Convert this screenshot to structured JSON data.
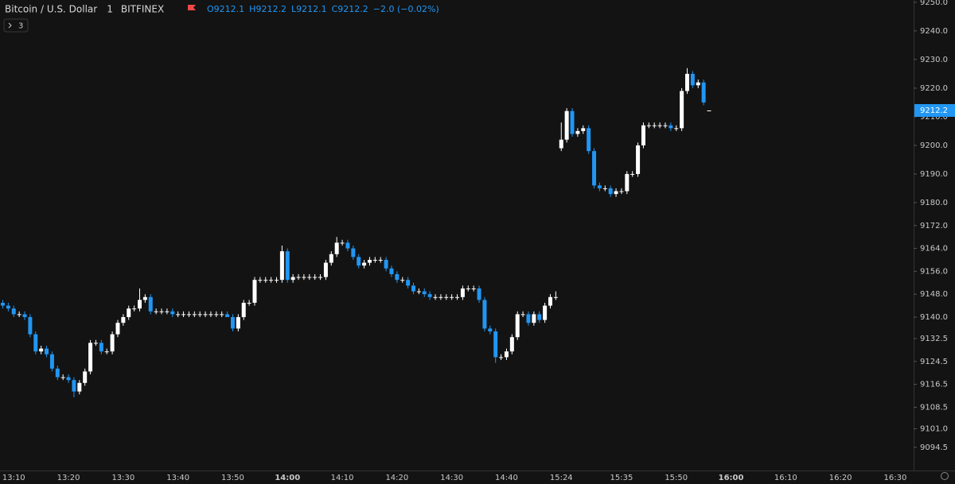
{
  "chart_data": {
    "type": "candlestick",
    "title": "Bitcoin / U.S. Dollar",
    "interval": "1",
    "exchange": "BITFINEX",
    "ohlc_labels": [
      "O",
      "H",
      "L",
      "C"
    ],
    "change": "−2.0 (−0.02%)",
    "indicators_count": 3,
    "up_color": "#ffffff",
    "down_color": "#2196f3",
    "categories": [
      null,
      null,
      "13:10",
      null,
      null,
      null,
      null,
      null,
      null,
      null,
      null,
      null,
      "13:20",
      null,
      null,
      null,
      null,
      null,
      null,
      null,
      null,
      null,
      "13:30",
      null,
      null,
      null,
      null,
      null,
      null,
      null,
      null,
      null,
      "13:40",
      null,
      null,
      null,
      null,
      null,
      null,
      null,
      null,
      null,
      "13:50",
      null,
      null,
      null,
      null,
      null,
      null,
      null,
      null,
      null,
      "14:00",
      null,
      null,
      null,
      null,
      null,
      null,
      null,
      null,
      null,
      "14:10",
      null,
      null,
      null,
      null,
      null,
      null,
      null,
      null,
      null,
      "14:20",
      null,
      null,
      null,
      null,
      null,
      null,
      null,
      null,
      null,
      "14:30",
      null,
      null,
      null,
      null,
      null,
      null,
      null,
      null,
      null,
      "14:40",
      null,
      null,
      null,
      null,
      null,
      null,
      null,
      null,
      null,
      "15:24",
      null,
      null,
      null,
      null,
      null,
      null,
      null,
      null,
      null,
      null,
      "15:35",
      null,
      null,
      null,
      null,
      null,
      null,
      null,
      null,
      null,
      "15:50",
      null,
      null,
      null,
      null,
      null,
      null,
      null,
      null,
      null,
      "16:00",
      null,
      null,
      null,
      null,
      null,
      null,
      null,
      null,
      null,
      "16:10",
      null,
      null,
      null,
      null,
      null,
      null,
      null,
      null,
      null,
      "16:20",
      null,
      null,
      null,
      null,
      null,
      null,
      null,
      null,
      null,
      "16:30"
    ],
    "open": [
      9145,
      9144,
      9143,
      9141,
      9141,
      9140,
      9134,
      9128,
      9129,
      9127,
      9122,
      9119,
      9119,
      9118,
      9114,
      9117,
      9121,
      9131,
      9131,
      9128,
      9128,
      9134,
      9138,
      9140,
      9143,
      9143,
      9146,
      9147,
      9142,
      9142,
      9142,
      9142,
      9141,
      9141,
      9141,
      9141,
      9141,
      9141,
      9141,
      9141,
      9141,
      9141,
      9140,
      9136,
      9140,
      9145,
      9145,
      9153,
      9153,
      9153,
      9153,
      9153,
      9163,
      9153,
      9154,
      9154,
      9154,
      9154,
      9154,
      9154,
      9159,
      9162,
      9166,
      9166,
      9164,
      9161,
      9158,
      9159,
      9160,
      9160,
      9160,
      9157,
      9155,
      9153,
      9153,
      9151,
      9149,
      9149,
      9148,
      9147,
      9147,
      9147,
      9147,
      9147,
      9147,
      9150,
      9150,
      9150,
      9146,
      9136,
      9135,
      9126,
      9126,
      9128,
      9133,
      9141,
      9141,
      9138,
      9141,
      9139,
      9144,
      9147,
      9199,
      9202,
      9212,
      9204,
      9205,
      9206,
      9198,
      9186,
      9185,
      9185,
      9183,
      9184,
      9184,
      9190,
      9190,
      9200,
      9207,
      9207,
      9207,
      9207,
      9207,
      9206,
      9206,
      9219,
      9225,
      9221,
      9222,
      9212.1,
      null,
      null,
      null,
      null,
      null,
      null,
      null,
      null,
      null,
      null,
      null,
      null,
      null,
      null,
      null,
      null,
      null,
      null,
      null,
      null,
      null,
      null,
      null,
      null,
      null,
      null,
      null,
      null,
      null,
      null,
      null,
      null,
      null,
      null
    ],
    "high": [
      9146,
      9145,
      9144,
      9142,
      9142,
      9141,
      9135,
      9130,
      9130,
      9128,
      9123,
      9120,
      9120,
      9119,
      9118,
      9122,
      9132,
      9132,
      9132,
      9129,
      9135,
      9139,
      9141,
      9144,
      9144,
      9150,
      9148,
      9148,
      9143,
      9143,
      9143,
      9143,
      9142,
      9142,
      9142,
      9142,
      9142,
      9142,
      9142,
      9142,
      9142,
      9142,
      9141,
      9141,
      9146,
      9146,
      9154,
      9154,
      9154,
      9154,
      9154,
      9165,
      9164,
      9155,
      9155,
      9155,
      9155,
      9155,
      9155,
      9160,
      9163,
      9168,
      9167,
      9167,
      9165,
      9162,
      9160,
      9161,
      9161,
      9161,
      9161,
      9158,
      9156,
      9154,
      9154,
      9152,
      9150,
      9150,
      9149,
      9148,
      9148,
      9148,
      9148,
      9148,
      9151,
      9151,
      9151,
      9151,
      9147,
      9137,
      9136,
      9127,
      9129,
      9134,
      9142,
      9142,
      9142,
      9142,
      9142,
      9145,
      9148,
      9149,
      9208,
      9213,
      9213,
      9206,
      9207,
      9207,
      9199,
      9187,
      9186,
      9186,
      9185,
      9185,
      9191,
      9191,
      9201,
      9208,
      9208,
      9208,
      9208,
      9208,
      9208,
      9207,
      9220,
      9227,
      9226,
      9223,
      9223,
      9212.2,
      null,
      null,
      null,
      null,
      null,
      null,
      null,
      null,
      null,
      null,
      null,
      null,
      null,
      null,
      null,
      null,
      null,
      null,
      null,
      null,
      null,
      null,
      null,
      null,
      null,
      null,
      null,
      null,
      null,
      null,
      null,
      null,
      null,
      null
    ],
    "low": [
      9143,
      9142,
      9140,
      9140,
      9139,
      9133,
      9127,
      9127,
      9126,
      9121,
      9118,
      9118,
      9117,
      9112,
      9113,
      9116,
      9120,
      9130,
      9127,
      9127,
      9127,
      9133,
      9137,
      9139,
      9142,
      9142,
      9145,
      9141,
      9141,
      9141,
      9141,
      9140,
      9140,
      9140,
      9140,
      9140,
      9140,
      9140,
      9140,
      9140,
      9140,
      9140,
      9135,
      9135,
      9139,
      9144,
      9144,
      9152,
      9152,
      9152,
      9152,
      9152,
      9152,
      9152,
      9153,
      9153,
      9153,
      9153,
      9153,
      9153,
      9158,
      9161,
      9165,
      9163,
      9160,
      9157,
      9157,
      9158,
      9159,
      9159,
      9156,
      9154,
      9152,
      9152,
      9150,
      9148,
      9148,
      9147,
      9146,
      9146,
      9146,
      9146,
      9146,
      9146,
      9146,
      9149,
      9149,
      9145,
      9135,
      9134,
      9124,
      9125,
      9125,
      9127,
      9132,
      9140,
      9137,
      9137,
      9138,
      9138,
      9143,
      9146,
      9198,
      9201,
      9203,
      9203,
      9204,
      9197,
      9185,
      9184,
      9184,
      9182,
      9182,
      9183,
      9183,
      9189,
      9189,
      9199,
      9206,
      9206,
      9206,
      9206,
      9205,
      9205,
      9205,
      9218,
      9220,
      9220,
      9214,
      9212.1,
      null,
      null,
      null,
      null,
      null,
      null,
      null,
      null,
      null,
      null,
      null,
      null,
      null,
      null,
      null,
      null,
      null,
      null,
      null,
      null,
      null,
      null,
      null,
      null,
      null,
      null,
      null,
      null,
      null,
      null,
      null,
      null,
      null,
      null
    ],
    "close": [
      9144,
      9143,
      9141,
      9141,
      9140,
      9134,
      9128,
      9129,
      9127,
      9122,
      9119,
      9119,
      9118,
      9114,
      9117,
      9121,
      9131,
      9131,
      9128,
      9128,
      9134,
      9138,
      9140,
      9143,
      9143,
      9146,
      9147,
      9142,
      9142,
      9142,
      9142,
      9141,
      9141,
      9141,
      9141,
      9141,
      9141,
      9141,
      9141,
      9141,
      9141,
      9140,
      9136,
      9140,
      9145,
      9145,
      9153,
      9153,
      9153,
      9153,
      9153,
      9163,
      9153,
      9154,
      9154,
      9154,
      9154,
      9154,
      9154,
      9159,
      9162,
      9166,
      9166,
      9164,
      9161,
      9158,
      9159,
      9160,
      9160,
      9160,
      9157,
      9155,
      9153,
      9153,
      9151,
      9149,
      9149,
      9148,
      9147,
      9147,
      9147,
      9147,
      9147,
      9147,
      9150,
      9150,
      9150,
      9146,
      9136,
      9135,
      9126,
      9126,
      9128,
      9133,
      9141,
      9141,
      9138,
      9141,
      9139,
      9144,
      9147,
      9147,
      9202,
      9212,
      9204,
      9205,
      9206,
      9198,
      9186,
      9185,
      9185,
      9183,
      9184,
      9184,
      9190,
      9190,
      9200,
      9207,
      9207,
      9207,
      9207,
      9207,
      9206,
      9206,
      9219,
      9225,
      9221,
      9222,
      9215,
      9212.2,
      null,
      null,
      null,
      null,
      null,
      null,
      null,
      null,
      null,
      null,
      null,
      null,
      null,
      null,
      null,
      null,
      null,
      null,
      null,
      null,
      null,
      null,
      null,
      null,
      null,
      null,
      null,
      null,
      null,
      null,
      null,
      null,
      null,
      null
    ],
    "ylim": [
      9086.4,
      9250.8
    ],
    "yticks": [
      {
        "value": 9250,
        "label": "9250.0"
      },
      {
        "value": 9240,
        "label": "9240.0"
      },
      {
        "value": 9230,
        "label": "9230.0"
      },
      {
        "value": 9220,
        "label": "9220.0"
      },
      {
        "value": 9210,
        "label": "9210.0"
      },
      {
        "value": 9200,
        "label": "9200.0"
      },
      {
        "value": 9190,
        "label": "9190.0"
      },
      {
        "value": 9180,
        "label": "9180.0"
      },
      {
        "value": 9172,
        "label": "9172.0"
      },
      {
        "value": 9164,
        "label": "9164.0"
      },
      {
        "value": 9156,
        "label": "9156.0"
      },
      {
        "value": 9148,
        "label": "9148.0"
      },
      {
        "value": 9140,
        "label": "9140.0"
      },
      9132.5,
      9124.5,
      9116.5,
      9108.5,
      {
        "value": 9101,
        "label": "9101.0"
      },
      9094.5
    ]
  }
}
